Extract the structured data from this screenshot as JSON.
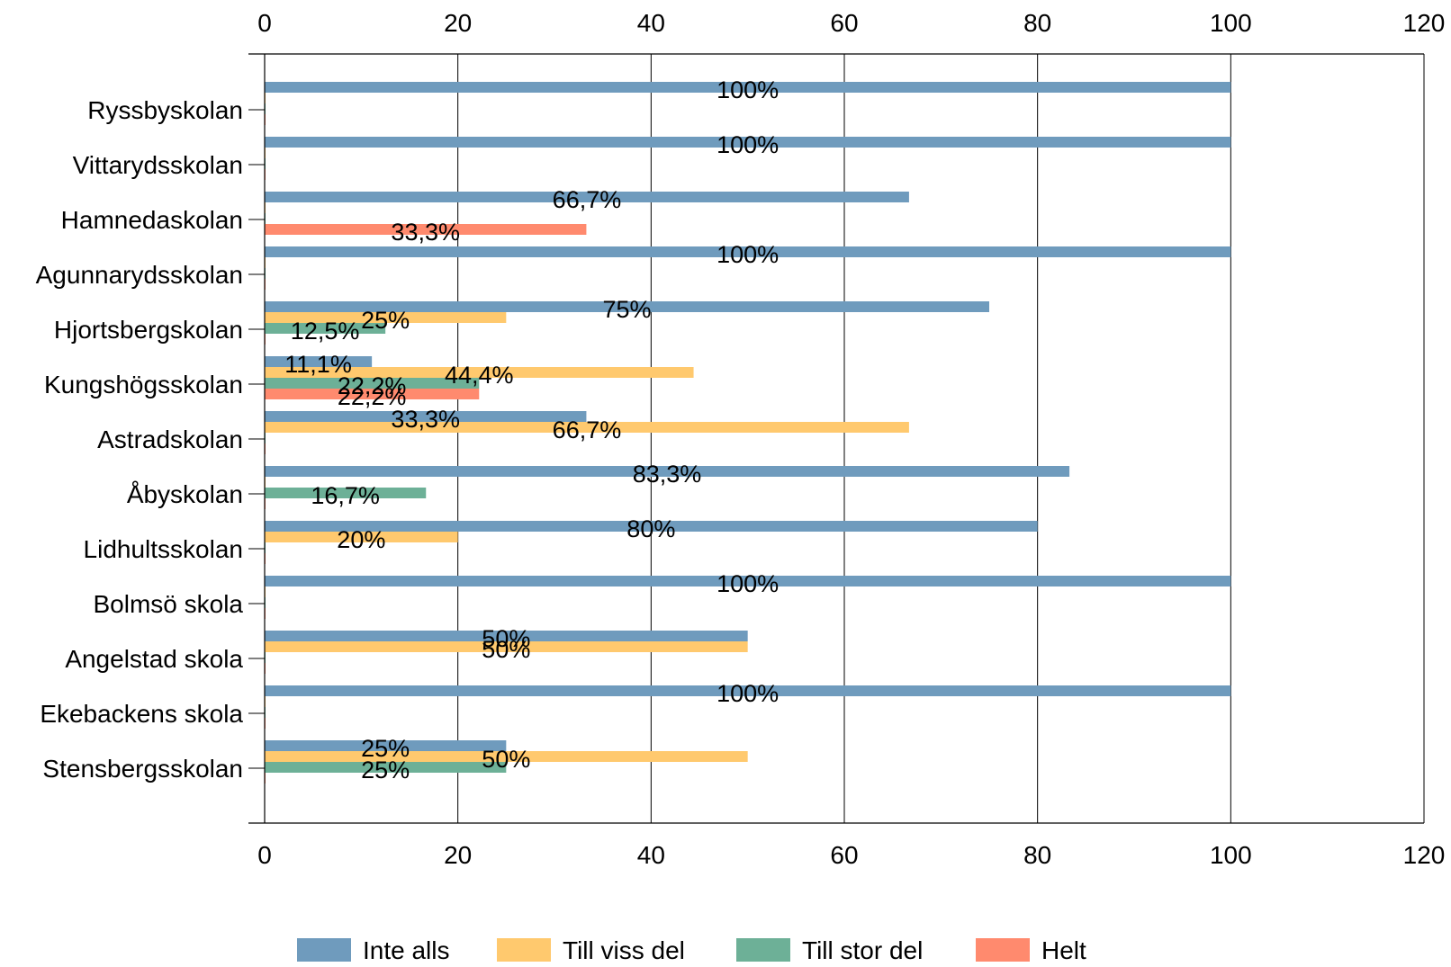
{
  "chart_data": {
    "type": "bar",
    "orientation": "horizontal",
    "categories": [
      "Ryssbyskolan",
      "Vittarydsskolan",
      "Hamnedaskolan",
      "Agunnarydsskolan",
      "Hjortsbergskolan",
      "Kungshögsskolan",
      "Astradskolan",
      "Åbyskolan",
      "Lidhultsskolan",
      "Bolmsö skola",
      "Angelstad skola",
      "Ekebackens skola",
      "Stensbergsskolan"
    ],
    "series": [
      {
        "name": "Inte alls",
        "color": "#6f9bbd",
        "values": [
          100,
          100,
          66.7,
          100,
          75,
          11.1,
          33.3,
          83.3,
          80,
          100,
          50,
          100,
          25
        ]
      },
      {
        "name": "Till viss del",
        "color": "#ffc96e",
        "values": [
          0,
          0,
          0,
          0,
          25,
          44.4,
          66.7,
          0,
          20,
          0,
          50,
          0,
          50
        ]
      },
      {
        "name": "Till stor del",
        "color": "#6db097",
        "values": [
          0,
          0,
          0,
          0,
          12.5,
          22.2,
          0,
          16.7,
          0,
          0,
          0,
          0,
          25
        ]
      },
      {
        "name": "Helt",
        "color": "#ff8a6e",
        "values": [
          0,
          0,
          33.3,
          0,
          0,
          22.2,
          0,
          0,
          0,
          0,
          0,
          0,
          0
        ]
      }
    ],
    "data_labels": [
      [
        "100%",
        "",
        "",
        ""
      ],
      [
        "100%",
        "",
        "",
        ""
      ],
      [
        "66,7%",
        "",
        "",
        "33,3%"
      ],
      [
        "100%",
        "",
        "",
        ""
      ],
      [
        "75%",
        "25%",
        "12,5%",
        ""
      ],
      [
        "11,1%",
        "44,4%",
        "22,2%",
        "22,2%"
      ],
      [
        "33,3%",
        "66,7%",
        "",
        ""
      ],
      [
        "83,3%",
        "",
        "16,7%",
        ""
      ],
      [
        "80%",
        "20%",
        "",
        ""
      ],
      [
        "100%",
        "",
        "",
        ""
      ],
      [
        "50%",
        "50%",
        "",
        ""
      ],
      [
        "100%",
        "",
        "",
        ""
      ],
      [
        "25%",
        "50%",
        "25%",
        ""
      ]
    ],
    "x_ticks": [
      "0",
      "20",
      "40",
      "60",
      "80",
      "100",
      "120"
    ],
    "xlim": [
      0,
      120
    ],
    "grid": "vertical",
    "x_axis_top_and_bottom": true,
    "legend_position": "bottom"
  }
}
